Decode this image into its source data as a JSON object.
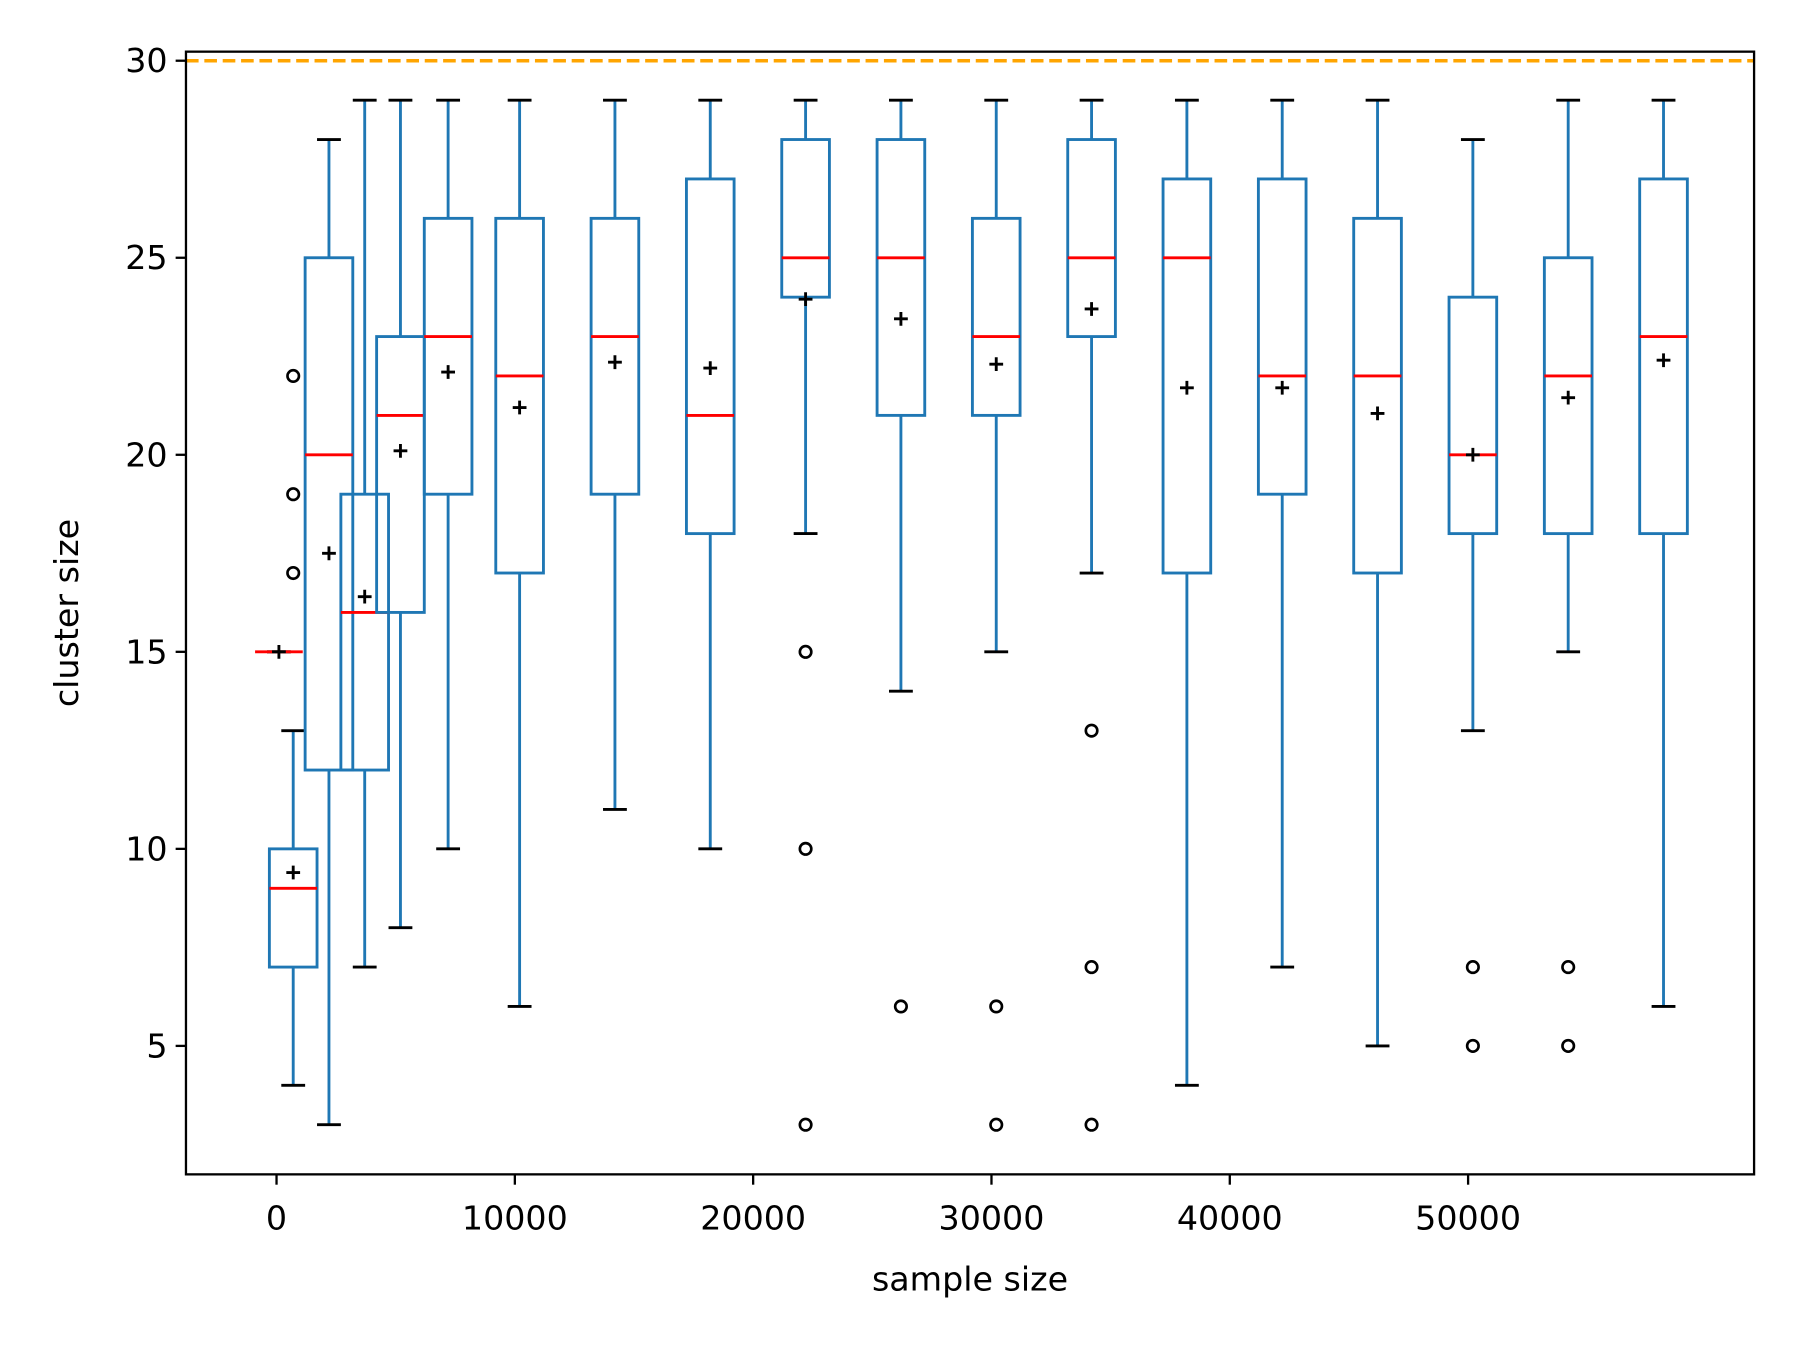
{
  "chart_data": {
    "type": "box",
    "xlabel": "sample size",
    "ylabel": "cluster size",
    "xlim": [
      -3800,
      62000
    ],
    "ylim": [
      1.74,
      30.23
    ],
    "xticks": [
      0,
      10000,
      20000,
      30000,
      40000,
      50000
    ],
    "yticks": [
      5,
      10,
      15,
      20,
      25,
      30
    ],
    "grid": false,
    "box_color": "#1f77b4",
    "median_color": "#ff0000",
    "mean_marker": "+",
    "reference_line": {
      "y": 30,
      "color": "#ffa500",
      "style": "dashed"
    },
    "boxes": [
      {
        "x": 100,
        "q1": 15,
        "median": 15,
        "q3": 15,
        "whislo": 15,
        "whishi": 15,
        "mean": 15.0,
        "fliers": []
      },
      {
        "x": 700,
        "q1": 7,
        "median": 9,
        "q3": 10,
        "whislo": 4,
        "whishi": 13,
        "mean": 9.4,
        "fliers": [
          17,
          19,
          22
        ]
      },
      {
        "x": 2200,
        "q1": 12,
        "median": 20,
        "q3": 25,
        "whislo": 3,
        "whishi": 28,
        "mean": 17.5,
        "fliers": []
      },
      {
        "x": 3700,
        "q1": 12,
        "median": 16,
        "q3": 19,
        "whislo": 7,
        "whishi": 29,
        "mean": 16.4,
        "fliers": []
      },
      {
        "x": 5200,
        "q1": 16,
        "median": 21,
        "q3": 23,
        "whislo": 8,
        "whishi": 29,
        "mean": 20.1,
        "fliers": []
      },
      {
        "x": 7200,
        "q1": 19,
        "median": 23,
        "q3": 26,
        "whislo": 10,
        "whishi": 29,
        "mean": 22.1,
        "fliers": []
      },
      {
        "x": 10200,
        "q1": 17,
        "median": 22,
        "q3": 26,
        "whislo": 6,
        "whishi": 29,
        "mean": 21.2,
        "fliers": []
      },
      {
        "x": 14200,
        "q1": 19,
        "median": 23,
        "q3": 26,
        "whislo": 11,
        "whishi": 29,
        "mean": 22.35,
        "fliers": []
      },
      {
        "x": 18200,
        "q1": 18,
        "median": 21,
        "q3": 27,
        "whislo": 10,
        "whishi": 29,
        "mean": 22.2,
        "fliers": []
      },
      {
        "x": 22200,
        "q1": 24,
        "median": 25,
        "q3": 28,
        "whislo": 18,
        "whishi": 29,
        "mean": 23.95,
        "fliers": [
          15,
          10,
          3
        ]
      },
      {
        "x": 26200,
        "q1": 21,
        "median": 25,
        "q3": 28,
        "whislo": 14,
        "whishi": 29,
        "mean": 23.45,
        "fliers": [
          6
        ]
      },
      {
        "x": 30200,
        "q1": 21,
        "median": 23,
        "q3": 26,
        "whislo": 15,
        "whishi": 29,
        "mean": 22.3,
        "fliers": [
          6,
          3
        ]
      },
      {
        "x": 34200,
        "q1": 23,
        "median": 25,
        "q3": 28,
        "whislo": 17,
        "whishi": 29,
        "mean": 23.7,
        "fliers": [
          13,
          7,
          3
        ]
      },
      {
        "x": 38200,
        "q1": 17,
        "median": 25,
        "q3": 27,
        "whislo": 4,
        "whishi": 29,
        "mean": 21.7,
        "fliers": []
      },
      {
        "x": 42200,
        "q1": 19,
        "median": 22,
        "q3": 27,
        "whislo": 7,
        "whishi": 29,
        "mean": 21.7,
        "fliers": []
      },
      {
        "x": 46200,
        "q1": 17,
        "median": 22,
        "q3": 26,
        "whislo": 5,
        "whishi": 29,
        "mean": 21.05,
        "fliers": []
      },
      {
        "x": 50200,
        "q1": 18,
        "median": 20,
        "q3": 24,
        "whislo": 13,
        "whishi": 28,
        "mean": 20.0,
        "fliers": [
          7,
          5
        ]
      },
      {
        "x": 54200,
        "q1": 18,
        "median": 22,
        "q3": 25,
        "whislo": 15,
        "whishi": 29,
        "mean": 21.45,
        "fliers": [
          7,
          5
        ]
      },
      {
        "x": 58200,
        "q1": 18,
        "median": 23,
        "q3": 27,
        "whislo": 6,
        "whishi": 29,
        "mean": 22.4,
        "fliers": []
      }
    ]
  }
}
